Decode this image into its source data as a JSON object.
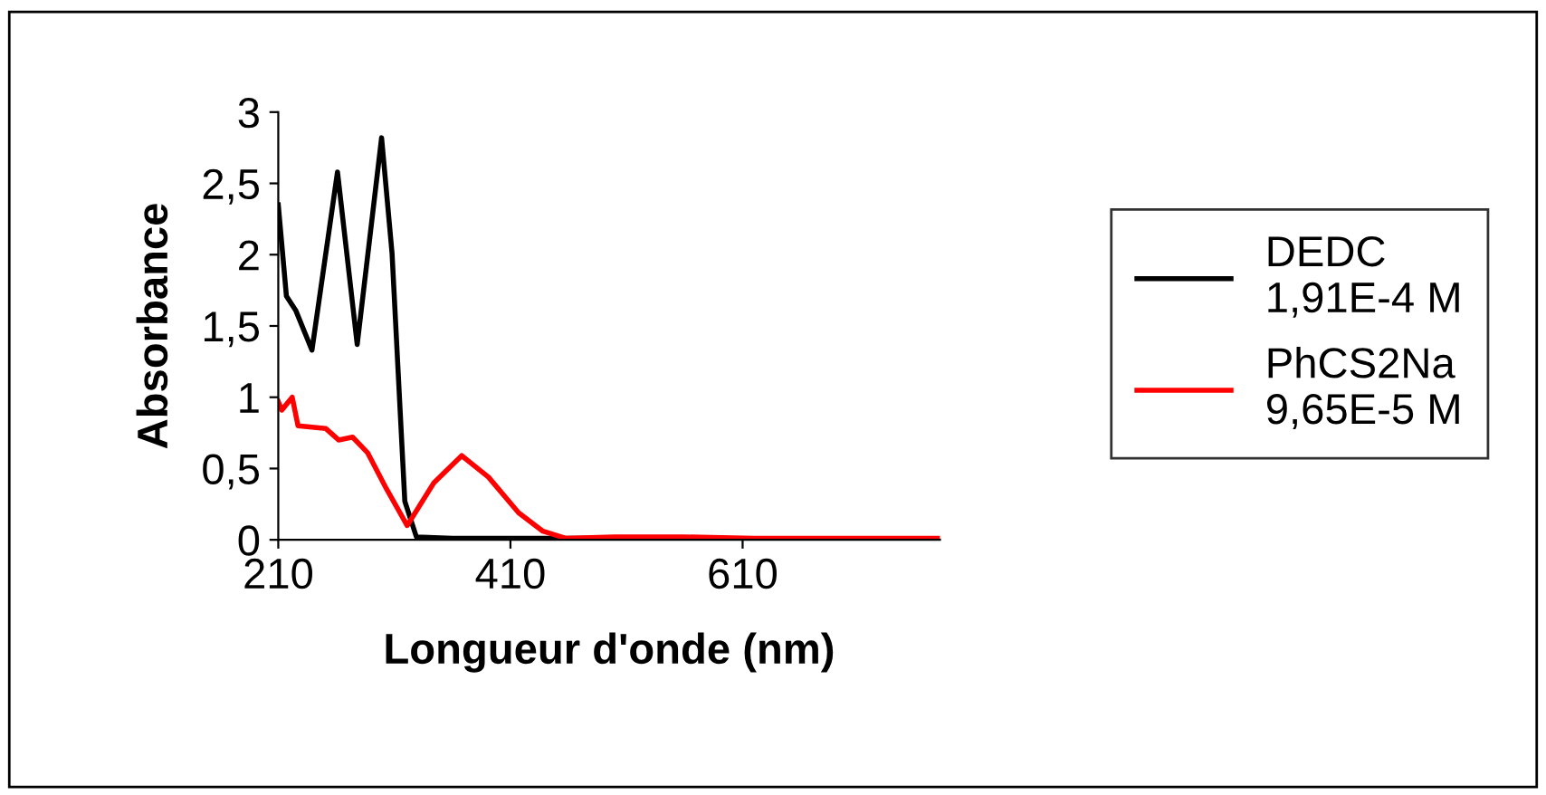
{
  "chart_data": {
    "type": "line",
    "xlabel": "Longueur d'onde (nm)",
    "ylabel": "Absorbance",
    "xlim": [
      210,
      780
    ],
    "xticks": [
      210,
      410,
      610
    ],
    "ylim": [
      0,
      3
    ],
    "yticks": [
      0,
      {
        "value": 0.5,
        "label": "0,5"
      },
      1,
      {
        "value": 1.5,
        "label": "1,5"
      },
      2,
      {
        "value": 2.5,
        "label": "2,5"
      },
      3
    ],
    "grid": false,
    "legend": "right",
    "marker": "none",
    "line_style": "solid",
    "series": [
      {
        "name": "DEDC\n1,91E-4 M",
        "color": "#000000",
        "x": [
          210,
          217,
          225,
          239,
          261,
          278,
          299,
          308,
          319,
          329,
          360,
          450,
          540
        ],
        "values": [
          2.35,
          1.71,
          1.61,
          1.33,
          2.58,
          1.37,
          2.82,
          2.01,
          0.27,
          0.02,
          0.01,
          0.01,
          0.01
        ]
      },
      {
        "name": "PhCS2Na\n9,65E-5 M",
        "color": "#ff0000",
        "x": [
          210,
          213,
          222,
          227,
          251,
          262,
          274,
          287,
          303,
          321,
          344,
          368,
          391,
          417,
          438,
          458,
          500,
          560,
          620,
          700,
          779
        ],
        "values": [
          0.97,
          0.91,
          1.0,
          0.8,
          0.78,
          0.7,
          0.72,
          0.61,
          0.36,
          0.1,
          0.4,
          0.59,
          0.44,
          0.19,
          0.06,
          0.01,
          0.02,
          0.02,
          0.01,
          0.01,
          0.01
        ]
      }
    ]
  }
}
